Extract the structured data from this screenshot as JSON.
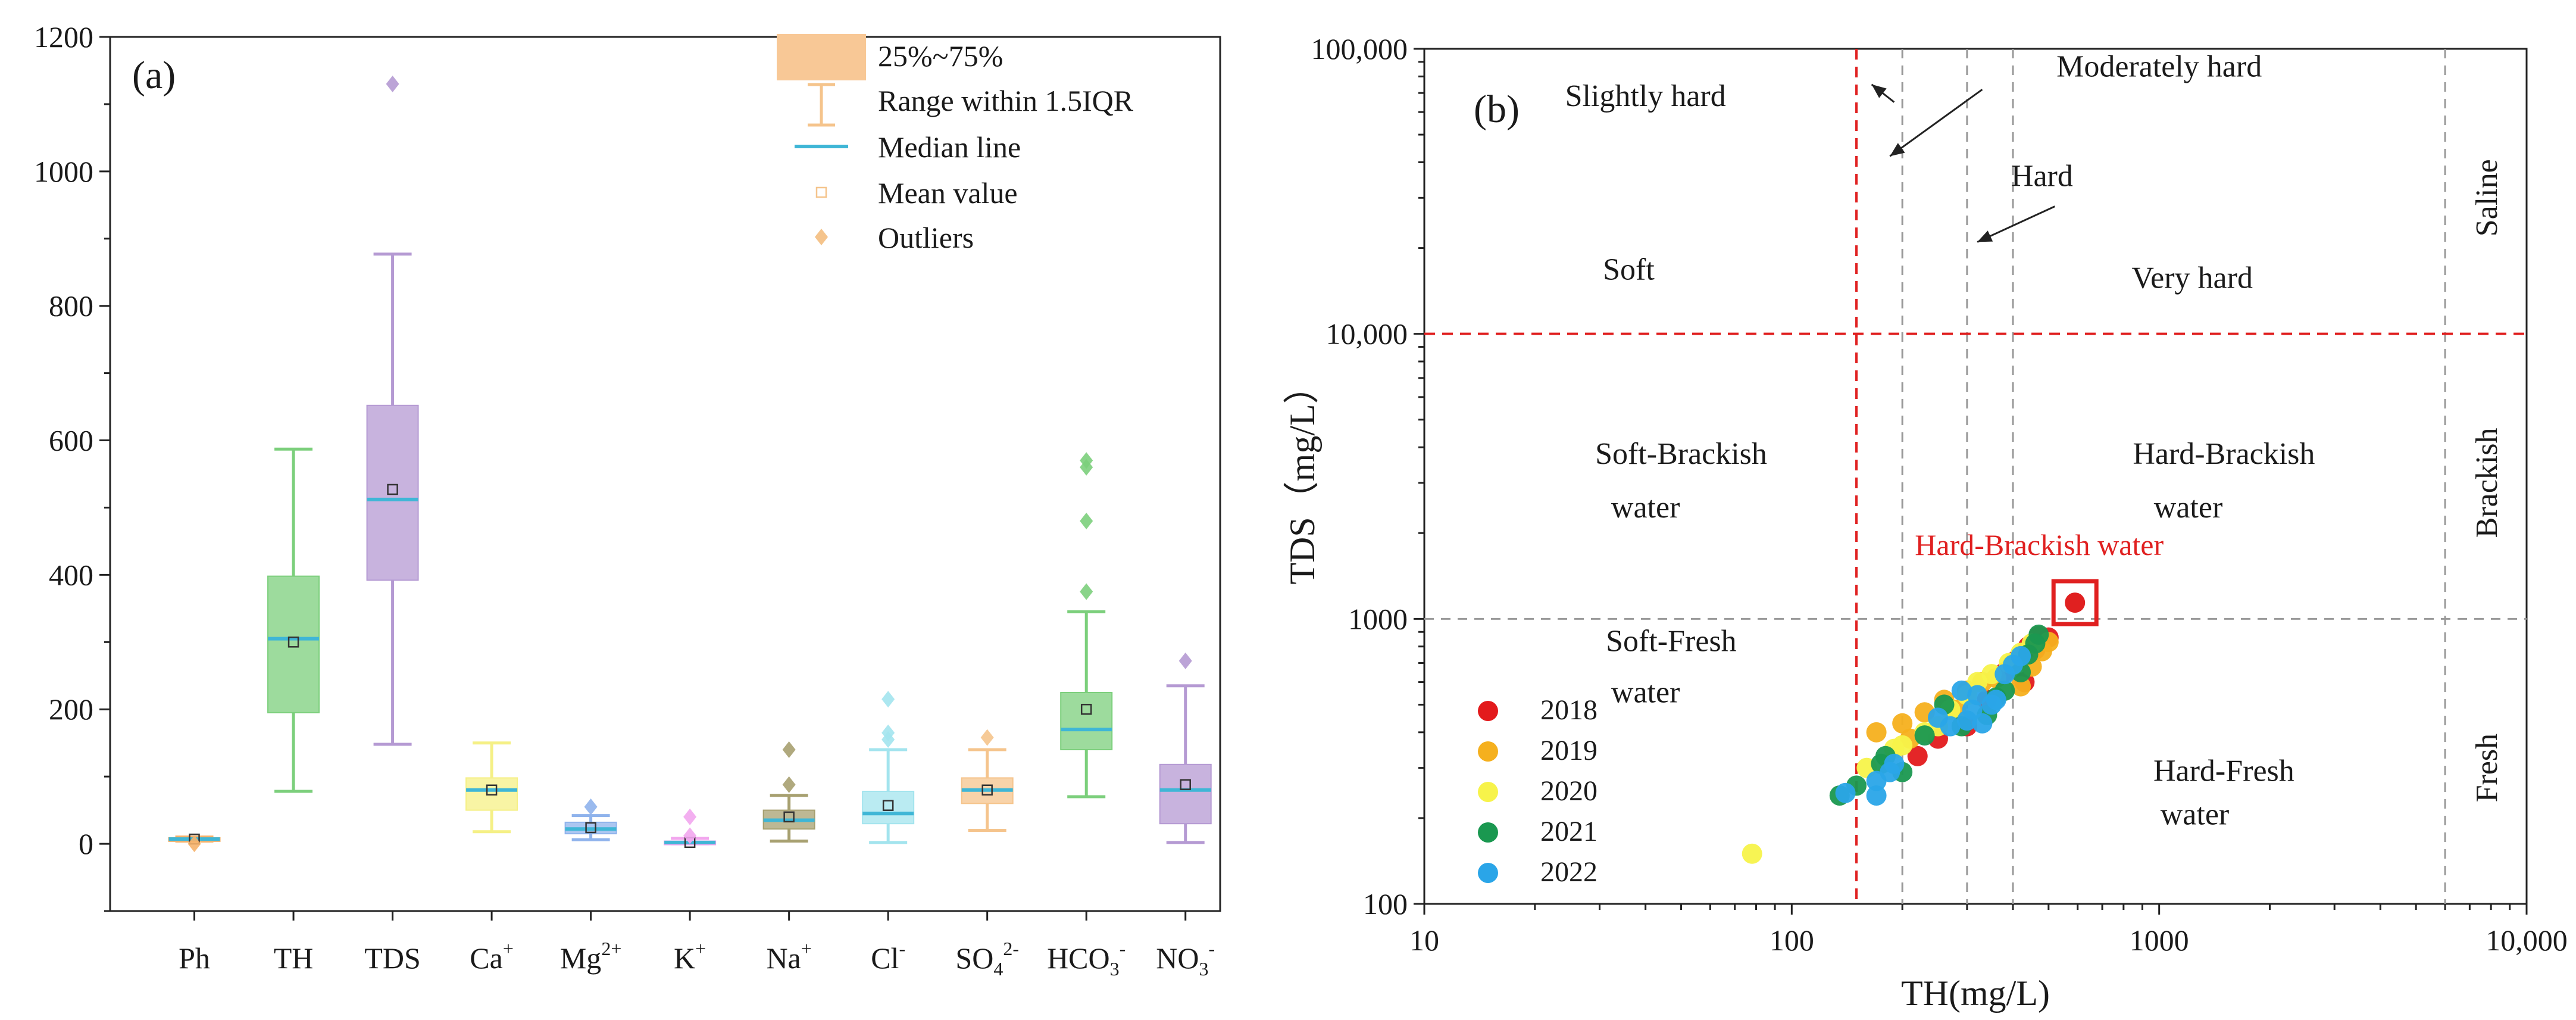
{
  "chart_data": [
    {
      "type": "box",
      "panel_label": "(a)",
      "categories": [
        "Ph",
        "TH",
        "TDS",
        "Ca",
        "Mg",
        "K",
        "Na",
        "Cl",
        "SO4",
        "HCO3",
        "NO3"
      ],
      "category_labels": [
        {
          "base": "Ph",
          "sup": "",
          "sub": ""
        },
        {
          "base": "TH",
          "sup": "",
          "sub": ""
        },
        {
          "base": "TDS",
          "sup": "",
          "sub": ""
        },
        {
          "base": "Ca",
          "sup": "+",
          "sub": ""
        },
        {
          "base": "Mg",
          "sup": "2+",
          "sub": ""
        },
        {
          "base": "K",
          "sup": "+",
          "sub": ""
        },
        {
          "base": "Na",
          "sup": "+",
          "sub": ""
        },
        {
          "base": "Cl",
          "sup": "-",
          "sub": ""
        },
        {
          "base": "SO",
          "sub": "4",
          "sup": "2-"
        },
        {
          "base": "HCO",
          "sub": "3",
          "sup": "-"
        },
        {
          "base": "NO",
          "sub": "3",
          "sup": "-"
        }
      ],
      "ylim": [
        -100,
        1200
      ],
      "yticks": [
        0,
        200,
        400,
        600,
        800,
        1000,
        1200
      ],
      "boxes": [
        {
          "cat": "Ph",
          "q1": 5,
          "q3": 9,
          "median": 7,
          "mean": 7,
          "whisker_low": 4,
          "whisker_high": 10,
          "outliers": [
            0
          ],
          "color": "#f6b26b"
        },
        {
          "cat": "TH",
          "q1": 195,
          "q3": 398,
          "median": 305,
          "mean": 300,
          "whisker_low": 78,
          "whisker_high": 587,
          "outliers": [],
          "color": "#7ccf7c"
        },
        {
          "cat": "TDS",
          "q1": 392,
          "q3": 652,
          "median": 512,
          "mean": 527,
          "whisker_low": 148,
          "whisker_high": 877,
          "outliers": [
            1130
          ],
          "color": "#b59ad3"
        },
        {
          "cat": "Ca",
          "q1": 50,
          "q3": 98,
          "median": 80,
          "mean": 80,
          "whisker_low": 18,
          "whisker_high": 150,
          "outliers": [],
          "color": "#f5f086"
        },
        {
          "cat": "Mg",
          "q1": 15,
          "q3": 32,
          "median": 22,
          "mean": 24,
          "whisker_low": 6,
          "whisker_high": 42,
          "outliers": [
            55
          ],
          "color": "#8fb3ec"
        },
        {
          "cat": "K",
          "q1": 1,
          "q3": 4,
          "median": 2,
          "mean": 2,
          "whisker_low": 0,
          "whisker_high": 8,
          "outliers": [
            40,
            12
          ],
          "color": "#f2a6ee"
        },
        {
          "cat": "Na",
          "q1": 22,
          "q3": 50,
          "median": 35,
          "mean": 40,
          "whisker_low": 4,
          "whisker_high": 72,
          "outliers": [
            88,
            140
          ],
          "color": "#a7a070"
        },
        {
          "cat": "Cl",
          "q1": 30,
          "q3": 78,
          "median": 45,
          "mean": 57,
          "whisker_low": 2,
          "whisker_high": 140,
          "outliers": [
            155,
            165,
            215
          ],
          "color": "#a3e4ee"
        },
        {
          "cat": "SO4",
          "q1": 60,
          "q3": 98,
          "median": 80,
          "mean": 80,
          "whisker_low": 20,
          "whisker_high": 140,
          "outliers": [
            158
          ],
          "color": "#f5c48c"
        },
        {
          "cat": "HCO3",
          "q1": 140,
          "q3": 225,
          "median": 170,
          "mean": 200,
          "whisker_low": 70,
          "whisker_high": 345,
          "outliers": [
            375,
            480,
            560,
            570
          ],
          "color": "#7ccf7c"
        },
        {
          "cat": "NO3",
          "q1": 30,
          "q3": 118,
          "median": 80,
          "mean": 88,
          "whisker_low": 2,
          "whisker_high": 235,
          "outliers": [
            272
          ],
          "color": "#b59ad3"
        }
      ],
      "legend": {
        "position": "top-right",
        "items": [
          {
            "kind": "box",
            "label": "25%~75%"
          },
          {
            "kind": "whisker",
            "label": "Range within 1.5IQR"
          },
          {
            "kind": "median",
            "label": "Median line"
          },
          {
            "kind": "mean",
            "label": "Mean value"
          },
          {
            "kind": "outlier",
            "label": "Outliers"
          }
        ]
      },
      "median_color": "#3fb6d6"
    },
    {
      "type": "scatter",
      "panel_label": "(b)",
      "xscale": "log",
      "yscale": "log",
      "xlim": [
        10,
        10000
      ],
      "ylim": [
        100,
        100000
      ],
      "xticks": [
        10,
        100,
        1000,
        10000
      ],
      "xtick_labels": [
        "10",
        "100",
        "1000",
        "10,000"
      ],
      "yticks": [
        100,
        1000,
        10000,
        100000
      ],
      "ytick_labels": [
        "100",
        "1000",
        "10,000",
        "100,000"
      ],
      "xlabel": "TH(mg/L)",
      "ylabel": "TDS（mg/L）",
      "reference_lines": {
        "vertical_gray": [
          200,
          300,
          400,
          6000
        ],
        "vertical_red": [
          150
        ],
        "horizontal_red": [
          10000
        ],
        "horizontal_gray": [
          1000
        ]
      },
      "region_labels": [
        {
          "text": "Slightly hard",
          "x": 40,
          "y": 63000
        },
        {
          "text": "Moderately hard",
          "x": 1000,
          "y": 80000
        },
        {
          "text": "Hard",
          "x": 480,
          "y": 33000
        },
        {
          "text": "Soft",
          "x": 36,
          "y": 15500
        },
        {
          "text": "Very hard",
          "x": 1230,
          "y": 14500
        },
        {
          "text": "Soft-Brackish",
          "x": 50,
          "y": 3500
        },
        {
          "text": "water",
          "x": 40,
          "y": 2270
        },
        {
          "text": "Hard-Brackish",
          "x": 1500,
          "y": 3500
        },
        {
          "text": "water",
          "x": 1200,
          "y": 2270
        },
        {
          "text": "Soft-Fresh",
          "x": 47,
          "y": 770
        },
        {
          "text": "water",
          "x": 40,
          "y": 510
        },
        {
          "text": "Hard-Fresh",
          "x": 1500,
          "y": 270
        },
        {
          "text": "water",
          "x": 1250,
          "y": 190
        }
      ],
      "side_labels": [
        {
          "text": "Saline",
          "y": 30000
        },
        {
          "text": "Brackish",
          "y": 3000
        },
        {
          "text": "Fresh",
          "y": 300
        }
      ],
      "arrows": [
        {
          "from": [
            190,
            65000
          ],
          "to": [
            165,
            75000
          ]
        },
        {
          "from": [
            330,
            72000
          ],
          "to": [
            185,
            42000
          ]
        },
        {
          "from": [
            520,
            28000
          ],
          "to": [
            320,
            21000
          ]
        }
      ],
      "highlight": {
        "label": "Hard-Brackish water",
        "x": 590,
        "y": 1140,
        "color": "#e02020"
      },
      "series": [
        {
          "name": "2018",
          "color": "#e31a1c",
          "points": [
            [
              220,
              330
            ],
            [
              250,
              380
            ],
            [
              300,
              420
            ],
            [
              340,
              520
            ],
            [
              380,
              650
            ],
            [
              410,
              720
            ],
            [
              440,
              800
            ],
            [
              470,
              870
            ],
            [
              500,
              860
            ],
            [
              430,
              600
            ],
            [
              460,
              780
            ]
          ]
        },
        {
          "name": "2019",
          "color": "#f5b01e",
          "points": [
            [
              170,
              400
            ],
            [
              200,
              430
            ],
            [
              230,
              470
            ],
            [
              260,
              520
            ],
            [
              300,
              560
            ],
            [
              330,
              600
            ],
            [
              360,
              620
            ],
            [
              400,
              700
            ],
            [
              420,
              580
            ],
            [
              450,
              680
            ],
            [
              480,
              770
            ],
            [
              500,
              830
            ],
            [
              280,
              480
            ],
            [
              210,
              380
            ]
          ]
        },
        {
          "name": "2020",
          "color": "#f7f34a",
          "points": [
            [
              78,
              150
            ],
            [
              160,
              300
            ],
            [
              190,
              350
            ],
            [
              230,
              400
            ],
            [
              270,
              480
            ],
            [
              300,
              540
            ],
            [
              320,
              600
            ],
            [
              350,
              640
            ],
            [
              390,
              700
            ],
            [
              420,
              760
            ],
            [
              450,
              820
            ],
            [
              200,
              360
            ],
            [
              250,
              420
            ]
          ]
        },
        {
          "name": "2021",
          "color": "#1a9850",
          "points": [
            [
              135,
              240
            ],
            [
              150,
              260
            ],
            [
              175,
              310
            ],
            [
              200,
              290
            ],
            [
              230,
              390
            ],
            [
              290,
              420
            ],
            [
              340,
              460
            ],
            [
              380,
              560
            ],
            [
              420,
              650
            ],
            [
              440,
              750
            ],
            [
              460,
              820
            ],
            [
              470,
              880
            ],
            [
              360,
              530
            ],
            [
              260,
              500
            ],
            [
              180,
              330
            ]
          ]
        },
        {
          "name": "2022",
          "color": "#2aa5e8",
          "points": [
            [
              140,
              245
            ],
            [
              170,
              270
            ],
            [
              185,
              290
            ],
            [
              190,
              310
            ],
            [
              270,
              420
            ],
            [
              300,
              440
            ],
            [
              310,
              480
            ],
            [
              320,
              540
            ],
            [
              330,
              430
            ],
            [
              350,
              500
            ],
            [
              360,
              520
            ],
            [
              380,
              640
            ],
            [
              400,
              690
            ],
            [
              420,
              740
            ],
            [
              290,
              560
            ],
            [
              250,
              450
            ],
            [
              170,
              240
            ]
          ]
        }
      ]
    }
  ]
}
